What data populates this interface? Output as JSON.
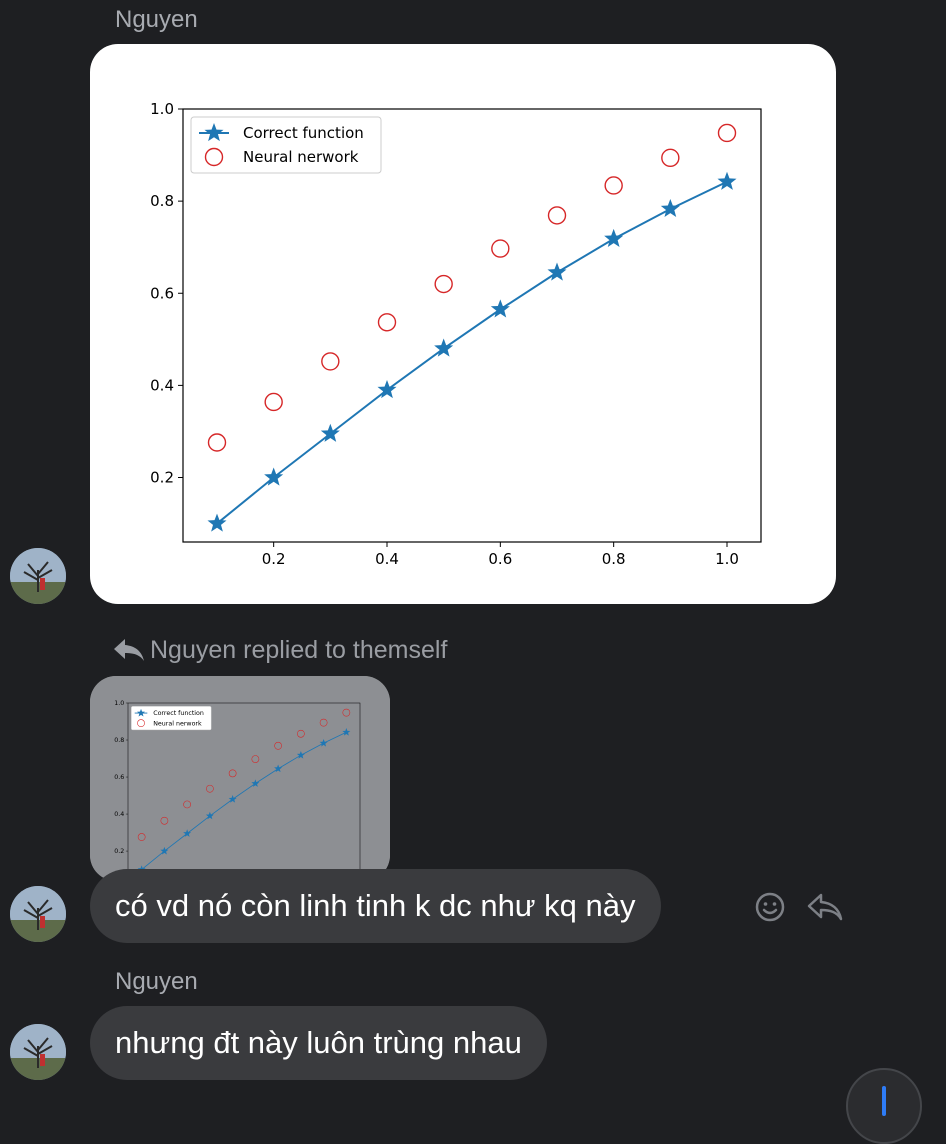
{
  "messages": [
    {
      "sender": "Nguyen",
      "type": "image"
    },
    {
      "reply_label": "Nguyen replied to themself",
      "text": "có vd nó còn linh tinh k dc như kq này"
    },
    {
      "sender": "Nguyen",
      "text": "nhưng đt này luôn trùng nhau"
    }
  ],
  "icons": {
    "avatar": "avatar-photo",
    "reply_arrow": "reply-arrow-icon",
    "emoji": "emoji-icon",
    "reply": "reply-icon",
    "scroll": "scroll-down-icon"
  },
  "colors": {
    "background": "#1e1f22",
    "bubble": "#3a3b3e",
    "correct_series": "#1f77b4",
    "network_series": "#d62728"
  },
  "chart_data": {
    "type": "line",
    "xlim": [
      0.04,
      1.06
    ],
    "ylim": [
      0.06,
      1.0
    ],
    "xticks": [
      "0.2",
      "0.4",
      "0.6",
      "0.8",
      "1.0"
    ],
    "yticks": [
      "0.2",
      "0.4",
      "0.6",
      "0.8",
      "1.0"
    ],
    "legend_position": "top-left",
    "grid": false,
    "series": [
      {
        "name": "Correct function",
        "marker": "star",
        "line": true,
        "x": [
          0.1,
          0.2,
          0.3,
          0.4,
          0.5,
          0.6,
          0.7,
          0.8,
          0.9,
          1.0
        ],
        "y": [
          0.1,
          0.2,
          0.295,
          0.39,
          0.48,
          0.565,
          0.645,
          0.718,
          0.783,
          0.842
        ]
      },
      {
        "name": "Neural nerwork",
        "marker": "circle",
        "line": false,
        "x": [
          0.1,
          0.2,
          0.3,
          0.4,
          0.5,
          0.6,
          0.7,
          0.8,
          0.9,
          1.0
        ],
        "y": [
          0.276,
          0.364,
          0.452,
          0.537,
          0.62,
          0.697,
          0.769,
          0.834,
          0.894,
          0.948
        ]
      }
    ]
  }
}
